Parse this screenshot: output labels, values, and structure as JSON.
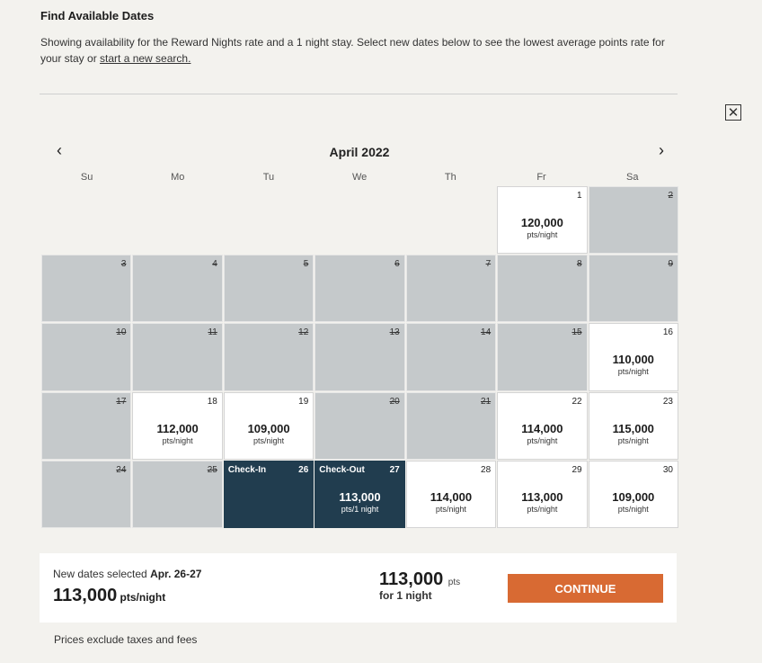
{
  "header": {
    "title": "Find Available Dates",
    "intro_text": "Showing availability for the Reward Nights rate and a 1 night stay. Select new dates below to see the lowest average points rate for your stay or ",
    "intro_link": "start a new search."
  },
  "calendar": {
    "month_label": "April  2022",
    "prev_icon": "chevron-left-icon",
    "next_icon": "chevron-right-icon",
    "weekdays": [
      "Su",
      "Mo",
      "Tu",
      "We",
      "Th",
      "Fr",
      "Sa"
    ],
    "unit": "pts/night",
    "days": [
      {
        "day": "1",
        "status": "available",
        "price": "120,000"
      },
      {
        "day": "2",
        "status": "unavailable"
      },
      {
        "day": "3",
        "status": "unavailable"
      },
      {
        "day": "4",
        "status": "unavailable"
      },
      {
        "day": "5",
        "status": "unavailable"
      },
      {
        "day": "6",
        "status": "unavailable"
      },
      {
        "day": "7",
        "status": "unavailable"
      },
      {
        "day": "8",
        "status": "unavailable"
      },
      {
        "day": "9",
        "status": "unavailable"
      },
      {
        "day": "10",
        "status": "unavailable"
      },
      {
        "day": "11",
        "status": "unavailable"
      },
      {
        "day": "12",
        "status": "unavailable"
      },
      {
        "day": "13",
        "status": "unavailable"
      },
      {
        "day": "14",
        "status": "unavailable"
      },
      {
        "day": "15",
        "status": "unavailable"
      },
      {
        "day": "16",
        "status": "available",
        "price": "110,000"
      },
      {
        "day": "17",
        "status": "unavailable"
      },
      {
        "day": "18",
        "status": "available",
        "price": "112,000"
      },
      {
        "day": "19",
        "status": "available",
        "price": "109,000"
      },
      {
        "day": "20",
        "status": "unavailable"
      },
      {
        "day": "21",
        "status": "unavailable"
      },
      {
        "day": "22",
        "status": "available",
        "price": "114,000"
      },
      {
        "day": "23",
        "status": "available",
        "price": "115,000"
      },
      {
        "day": "24",
        "status": "unavailable"
      },
      {
        "day": "25",
        "status": "unavailable"
      },
      {
        "day": "26",
        "status": "selected",
        "tag": "Check-In"
      },
      {
        "day": "27",
        "status": "selected",
        "tag": "Check-Out",
        "price": "113,000",
        "unit": "pts/1 night"
      },
      {
        "day": "28",
        "status": "available",
        "price": "114,000"
      },
      {
        "day": "29",
        "status": "available",
        "price": "113,000"
      },
      {
        "day": "30",
        "status": "available",
        "price": "109,000"
      }
    ]
  },
  "selection": {
    "line_prefix": "New dates selected ",
    "dates": "Apr. 26-27",
    "rate": "113,000",
    "rate_unit": " pts/night",
    "total": "113,000",
    "total_unit": "pts",
    "total_sub": "for 1 night",
    "continue_label": "CONTINUE"
  },
  "footer_note": "Prices exclude taxes and fees",
  "colors": {
    "selected": "#213d4f",
    "unavailable": "#c5c9cb",
    "continue": "#d86a33"
  }
}
